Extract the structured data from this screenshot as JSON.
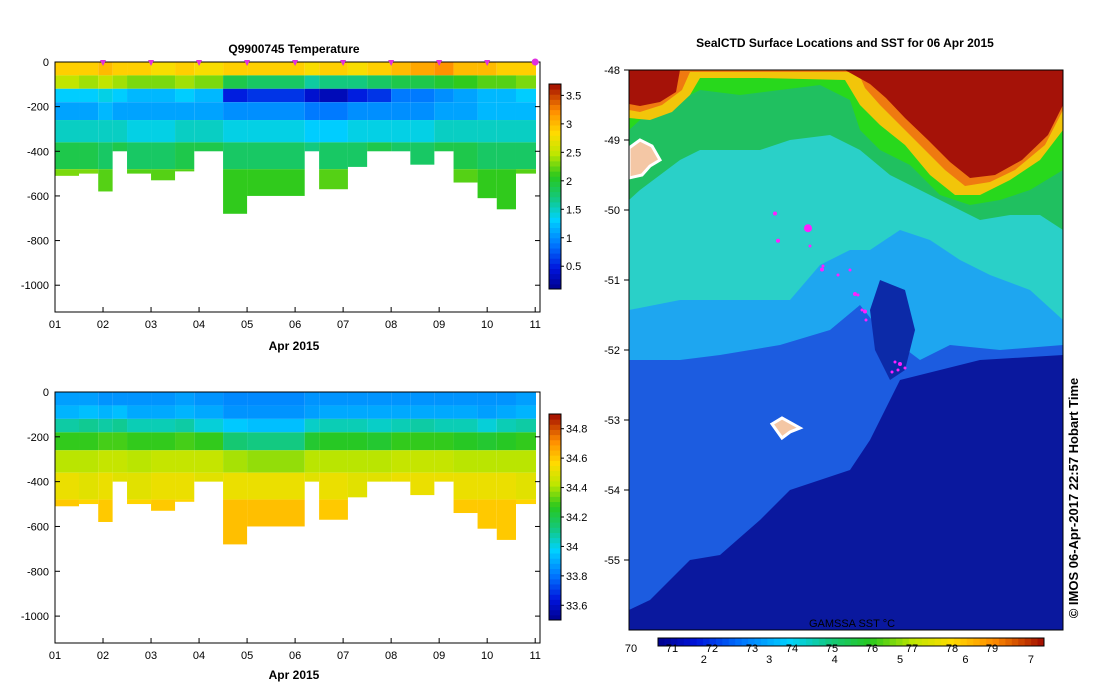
{
  "chart_data": [
    {
      "type": "heatmap",
      "title": "Q9900745  Temperature",
      "xlabel": "Apr 2015",
      "ylabel": "",
      "x_ticks": [
        "01",
        "02",
        "03",
        "04",
        "05",
        "06",
        "07",
        "08",
        "09",
        "10",
        "11"
      ],
      "y_ticks": [
        "0",
        "-200",
        "-400",
        "-600",
        "-800",
        "-1000"
      ],
      "ylim": [
        -1120,
        0
      ],
      "xlim": [
        1,
        11.1
      ],
      "colorbar_ticks": [
        "0.5",
        "1",
        "1.5",
        "2",
        "2.5",
        "3",
        "3.5"
      ],
      "colorbar_range": [
        0.1,
        3.7
      ],
      "profile_markers_day": [
        2,
        3,
        4,
        5,
        6,
        7,
        8,
        9,
        10,
        11
      ],
      "series": [
        {
          "day": 1.0,
          "depth_max": 510,
          "values": [
            2.9,
            2.5,
            1.3,
            1.1,
            1.5,
            1.9,
            2.3
          ]
        },
        {
          "day": 1.5,
          "depth_max": 500,
          "values": [
            2.9,
            2.4,
            1.3,
            1.1,
            1.5,
            1.9,
            2.3
          ]
        },
        {
          "day": 1.9,
          "depth_max": 580,
          "values": [
            3.0,
            2.5,
            1.4,
            1.2,
            1.5,
            1.8,
            2.2
          ]
        },
        {
          "day": 2.2,
          "depth_max": 400,
          "values": [
            2.9,
            2.4,
            1.3,
            1.1,
            1.5,
            1.9,
            2.2
          ]
        },
        {
          "day": 2.5,
          "depth_max": 500,
          "values": [
            2.9,
            2.3,
            1.2,
            1.1,
            1.4,
            1.8,
            2.2
          ]
        },
        {
          "day": 3.0,
          "depth_max": 530,
          "values": [
            2.8,
            2.3,
            1.2,
            1.1,
            1.4,
            1.8,
            2.2
          ]
        },
        {
          "day": 3.5,
          "depth_max": 490,
          "values": [
            2.9,
            2.4,
            1.3,
            1.1,
            1.5,
            1.9,
            2.2
          ]
        },
        {
          "day": 3.9,
          "depth_max": 400,
          "values": [
            2.8,
            2.3,
            1.2,
            1.1,
            1.5,
            1.9,
            2.2
          ]
        },
        {
          "day": 4.5,
          "depth_max": 680,
          "values": [
            2.9,
            1.9,
            0.5,
            1.0,
            1.4,
            1.8,
            2.1
          ]
        },
        {
          "day": 5.0,
          "depth_max": 600,
          "values": [
            2.9,
            1.8,
            0.6,
            1.0,
            1.4,
            1.8,
            2.1
          ]
        },
        {
          "day": 6.2,
          "depth_max": 400,
          "values": [
            2.8,
            1.6,
            0.4,
            0.9,
            1.3,
            1.7,
            2.1
          ]
        },
        {
          "day": 6.5,
          "depth_max": 570,
          "values": [
            2.9,
            1.7,
            0.3,
            0.9,
            1.3,
            1.8,
            2.2
          ]
        },
        {
          "day": 7.1,
          "depth_max": 470,
          "values": [
            2.8,
            1.7,
            0.5,
            1.0,
            1.4,
            1.8,
            2.2
          ]
        },
        {
          "day": 7.5,
          "depth_max": 400,
          "values": [
            2.9,
            1.8,
            0.6,
            1.0,
            1.4,
            1.9,
            2.2
          ]
        },
        {
          "day": 8.0,
          "depth_max": 400,
          "values": [
            3.0,
            1.9,
            0.9,
            1.0,
            1.4,
            1.8,
            2.2
          ]
        },
        {
          "day": 8.4,
          "depth_max": 460,
          "values": [
            3.1,
            1.9,
            0.9,
            1.0,
            1.4,
            1.8,
            2.2
          ]
        },
        {
          "day": 8.9,
          "depth_max": 400,
          "values": [
            3.2,
            2.0,
            1.0,
            1.1,
            1.5,
            1.9,
            2.2
          ]
        },
        {
          "day": 9.3,
          "depth_max": 540,
          "values": [
            3.0,
            2.1,
            1.1,
            1.1,
            1.5,
            1.9,
            2.2
          ]
        },
        {
          "day": 9.8,
          "depth_max": 610,
          "values": [
            3.0,
            2.2,
            1.2,
            1.2,
            1.5,
            1.8,
            2.1
          ]
        },
        {
          "day": 10.2,
          "depth_max": 660,
          "values": [
            2.9,
            2.2,
            1.2,
            1.2,
            1.5,
            1.8,
            2.1
          ]
        },
        {
          "day": 10.6,
          "depth_max": 500,
          "values": [
            2.9,
            2.3,
            1.3,
            1.2,
            1.5,
            1.8,
            2.2
          ]
        }
      ]
    },
    {
      "type": "heatmap",
      "title": "",
      "xlabel": "Apr 2015",
      "ylabel": "",
      "x_ticks": [
        "01",
        "02",
        "03",
        "04",
        "05",
        "06",
        "07",
        "08",
        "09",
        "10",
        "11"
      ],
      "y_ticks": [
        "0",
        "-200",
        "-400",
        "-600",
        "-800",
        "-1000"
      ],
      "ylim": [
        -1120,
        0
      ],
      "xlim": [
        1,
        11.1
      ],
      "colorbar_ticks": [
        "33.6",
        "33.8",
        "34",
        "34.2",
        "34.4",
        "34.6",
        "34.8"
      ],
      "colorbar_range": [
        33.5,
        34.9
      ],
      "series": [
        {
          "day": 1.0,
          "depth_max": 510,
          "values": [
            33.88,
            33.92,
            34.08,
            34.28,
            34.42,
            34.52,
            34.6
          ]
        },
        {
          "day": 1.5,
          "depth_max": 500,
          "values": [
            33.88,
            33.94,
            34.1,
            34.28,
            34.42,
            34.5,
            34.58
          ]
        },
        {
          "day": 1.9,
          "depth_max": 580,
          "values": [
            33.86,
            33.92,
            34.08,
            34.3,
            34.44,
            34.52,
            34.6
          ]
        },
        {
          "day": 2.2,
          "depth_max": 400,
          "values": [
            33.86,
            33.94,
            34.1,
            34.3,
            34.44,
            34.5,
            34.56
          ]
        },
        {
          "day": 2.5,
          "depth_max": 500,
          "values": [
            33.86,
            33.9,
            34.06,
            34.28,
            34.42,
            34.5,
            34.58
          ]
        },
        {
          "day": 3.0,
          "depth_max": 530,
          "values": [
            33.86,
            33.9,
            34.06,
            34.28,
            34.44,
            34.52,
            34.6
          ]
        },
        {
          "day": 3.5,
          "depth_max": 490,
          "values": [
            33.88,
            33.92,
            34.08,
            34.3,
            34.44,
            34.52,
            34.58
          ]
        },
        {
          "day": 3.9,
          "depth_max": 400,
          "values": [
            33.86,
            33.9,
            34.02,
            34.28,
            34.44,
            34.5,
            34.56
          ]
        },
        {
          "day": 4.5,
          "depth_max": 680,
          "values": [
            33.84,
            33.86,
            33.96,
            34.14,
            34.4,
            34.52,
            34.62
          ]
        },
        {
          "day": 5.0,
          "depth_max": 600,
          "values": [
            33.84,
            33.86,
            33.94,
            34.12,
            34.38,
            34.52,
            34.62
          ]
        },
        {
          "day": 6.2,
          "depth_max": 400,
          "values": [
            33.86,
            33.88,
            34.04,
            34.24,
            34.42,
            34.5,
            34.58
          ]
        },
        {
          "day": 6.5,
          "depth_max": 570,
          "values": [
            33.86,
            33.9,
            34.06,
            34.26,
            34.42,
            34.52,
            34.6
          ]
        },
        {
          "day": 7.1,
          "depth_max": 470,
          "values": [
            33.86,
            33.9,
            34.06,
            34.26,
            34.42,
            34.5,
            34.58
          ]
        },
        {
          "day": 7.5,
          "depth_max": 400,
          "values": [
            33.86,
            33.9,
            34.04,
            34.24,
            34.42,
            34.5,
            34.58
          ]
        },
        {
          "day": 8.0,
          "depth_max": 400,
          "values": [
            33.86,
            33.9,
            34.06,
            34.28,
            34.44,
            34.52,
            34.58
          ]
        },
        {
          "day": 8.4,
          "depth_max": 460,
          "values": [
            33.86,
            33.9,
            34.08,
            34.28,
            34.44,
            34.52,
            34.6
          ]
        },
        {
          "day": 8.9,
          "depth_max": 400,
          "values": [
            33.86,
            33.9,
            34.06,
            34.28,
            34.44,
            34.52,
            34.58
          ]
        },
        {
          "day": 9.3,
          "depth_max": 540,
          "values": [
            33.86,
            33.9,
            34.06,
            34.26,
            34.42,
            34.52,
            34.6
          ]
        },
        {
          "day": 9.8,
          "depth_max": 610,
          "values": [
            33.86,
            33.88,
            34.02,
            34.24,
            34.42,
            34.52,
            34.6
          ]
        },
        {
          "day": 10.2,
          "depth_max": 660,
          "values": [
            33.86,
            33.9,
            34.06,
            34.26,
            34.42,
            34.52,
            34.6
          ]
        },
        {
          "day": 10.6,
          "depth_max": 500,
          "values": [
            33.88,
            33.92,
            34.08,
            34.28,
            34.42,
            34.5,
            34.58
          ]
        }
      ]
    },
    {
      "type": "heatmap",
      "title": "SealCTD Surface Locations and SST for 06 Apr 2015",
      "xlabel": "",
      "ylabel": "",
      "y_ticks": [
        "-48",
        "-49",
        "-50",
        "-51",
        "-52",
        "-53",
        "-54",
        "-55"
      ],
      "ylim": [
        -56,
        -48
      ],
      "colorbar_label": "GAMSSA SST °C",
      "colorbar_ticks_celsius": [
        "2",
        "3",
        "4",
        "5",
        "6",
        "7"
      ],
      "colorbar_ticks_fahrenheit": [
        "70",
        "71",
        "72",
        "73",
        "74",
        "75",
        "76",
        "77",
        "78",
        "79"
      ],
      "colorbar_range": [
        1.3,
        7.2
      ],
      "credit": "© IMOS 06-Apr-2017 22:57 Hobart Time",
      "seal_track": [
        {
          "lat": -50.05,
          "type": "small"
        },
        {
          "lat": -50.26,
          "type": "large"
        },
        {
          "lat": -50.44,
          "type": "small"
        },
        {
          "lat": -50.85,
          "type": "small"
        },
        {
          "lat": -51.2,
          "type": "small"
        },
        {
          "lat": -51.45,
          "type": "small"
        },
        {
          "lat": -52.2,
          "type": "small"
        }
      ],
      "features": [
        "SST field",
        "coastline",
        "seal locations"
      ]
    }
  ]
}
